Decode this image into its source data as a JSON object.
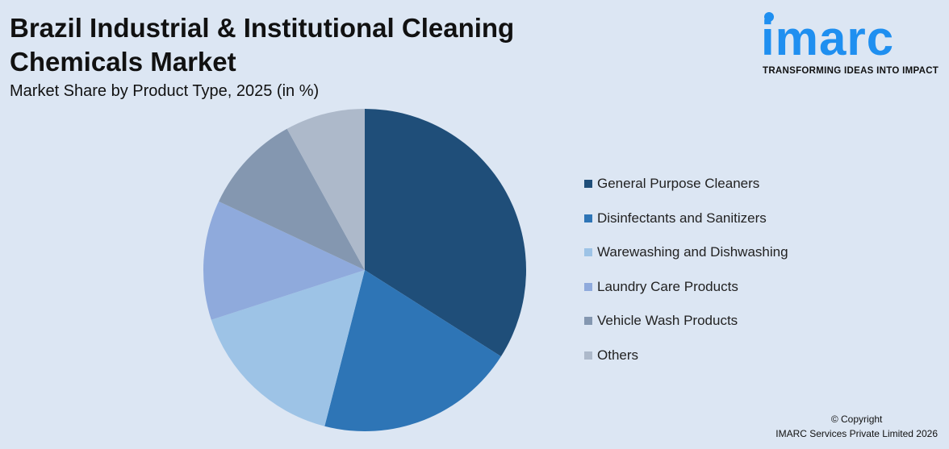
{
  "header": {
    "title": "Brazil Industrial & Institutional Cleaning Chemicals Market",
    "subtitle": "Market Share by Product Type, 2025 (in %)"
  },
  "logo": {
    "word": "imarc",
    "tagline": "TRANSFORMING IDEAS INTO IMPACT",
    "color": "#1f8ff0"
  },
  "chart_data": {
    "type": "pie",
    "title": "Brazil Industrial & Institutional Cleaning Chemicals Market",
    "subtitle": "Market Share by Product Type, 2025 (in %)",
    "legend_position": "right",
    "slices": [
      {
        "name": "General Purpose Cleaners",
        "value": 34,
        "color": "#1f4e79"
      },
      {
        "name": "Disinfectants and Sanitizers",
        "value": 20,
        "color": "#2e75b6"
      },
      {
        "name": "Warewashing and Dishwashing",
        "value": 16,
        "color": "#9dc3e6"
      },
      {
        "name": "Laundry Care Products",
        "value": 12,
        "color": "#8faadc"
      },
      {
        "name": "Vehicle Wash Products",
        "value": 10,
        "color": "#8497b0"
      },
      {
        "name": "Others",
        "value": 8,
        "color": "#adb9ca"
      }
    ]
  },
  "footer": {
    "copyright_line1": "© Copyright",
    "copyright_line2": "IMARC Services Private Limited 2026"
  }
}
